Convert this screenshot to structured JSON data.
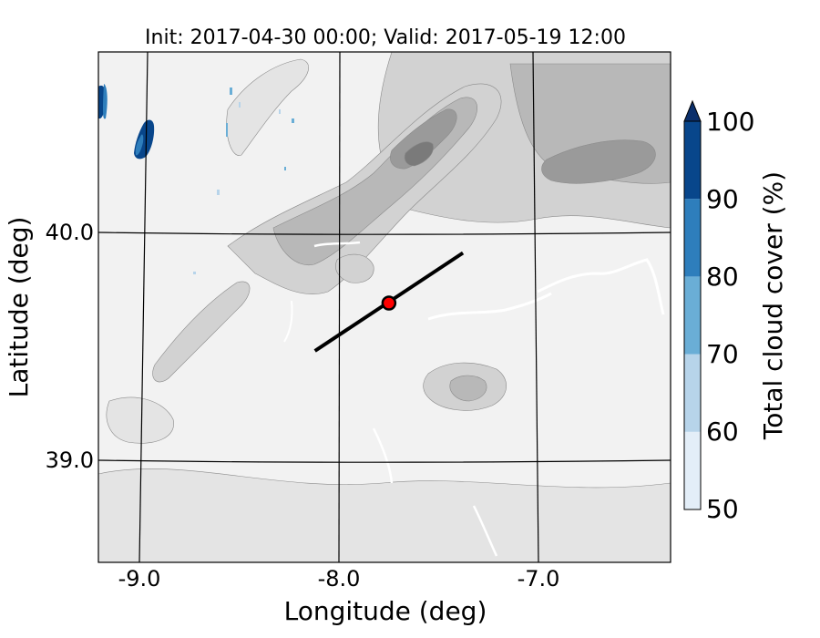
{
  "title": "Init: 2017-04-30 00:00; Valid: 2017-05-19 12:00",
  "chart_data": {
    "type": "map",
    "xlabel": "Longitude (deg)",
    "ylabel": "Latitude (deg)",
    "xlim": [
      -9.25,
      -6.35
    ],
    "ylim": [
      38.55,
      40.8
    ],
    "x_ticks": [
      "-9.0",
      "-8.0",
      "-7.0"
    ],
    "y_ticks": [
      "40.0",
      "39.0"
    ],
    "gridlines": true,
    "colorbar": {
      "label": "Total cloud cover (%)",
      "levels": [
        50,
        60,
        70,
        80,
        90,
        100
      ],
      "tick_labels": [
        "50",
        "60",
        "70",
        "80",
        "90",
        "100"
      ],
      "colors": [
        "#e3eef8",
        "#b7d4ea",
        "#6aaed6",
        "#2e7ebc",
        "#08468b"
      ],
      "extend": "max",
      "extend_color": "#0b2f6b"
    },
    "cross_section": {
      "start": [
        -8.12,
        39.48
      ],
      "end": [
        -7.38,
        39.91
      ]
    },
    "marker": {
      "lon": -7.75,
      "lat": 39.69,
      "color": "#ff0000"
    },
    "terrain_colors": [
      "#f2f2f2",
      "#e4e4e4",
      "#d2d2d2",
      "#b8b8b8",
      "#9a9a9a",
      "#7a7a7a"
    ]
  }
}
